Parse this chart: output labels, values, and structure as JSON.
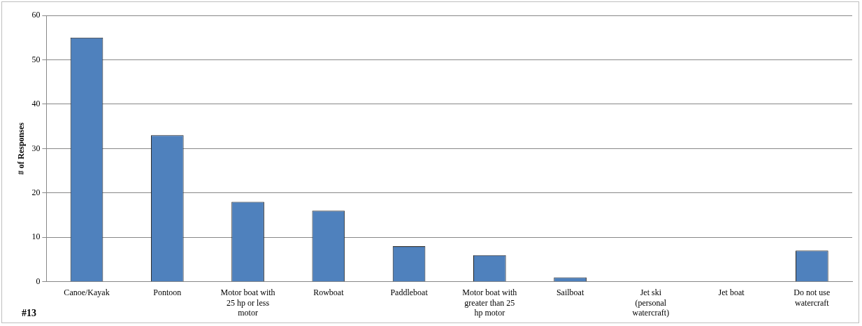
{
  "chart_data": {
    "type": "bar",
    "ylabel": "# of Responses",
    "categories": [
      "Canoe/Kayak",
      "Pontoon",
      "Motor boat with 25 hp or less motor",
      "Rowboat",
      "Paddleboat",
      "Motor boat with greater than 25 hp motor",
      "Sailboat",
      "Jet ski (personal watercraft)",
      "Jet boat",
      "Do not use watercraft"
    ],
    "values": [
      55,
      33,
      18,
      16,
      8,
      6,
      1,
      0,
      0,
      7
    ],
    "color": "#4f81bd",
    "ylim": [
      0,
      60
    ],
    "yticks": [
      0,
      10,
      20,
      30,
      40,
      50,
      60
    ],
    "grid": "y",
    "legend": false,
    "annotations": [
      "#13"
    ]
  }
}
